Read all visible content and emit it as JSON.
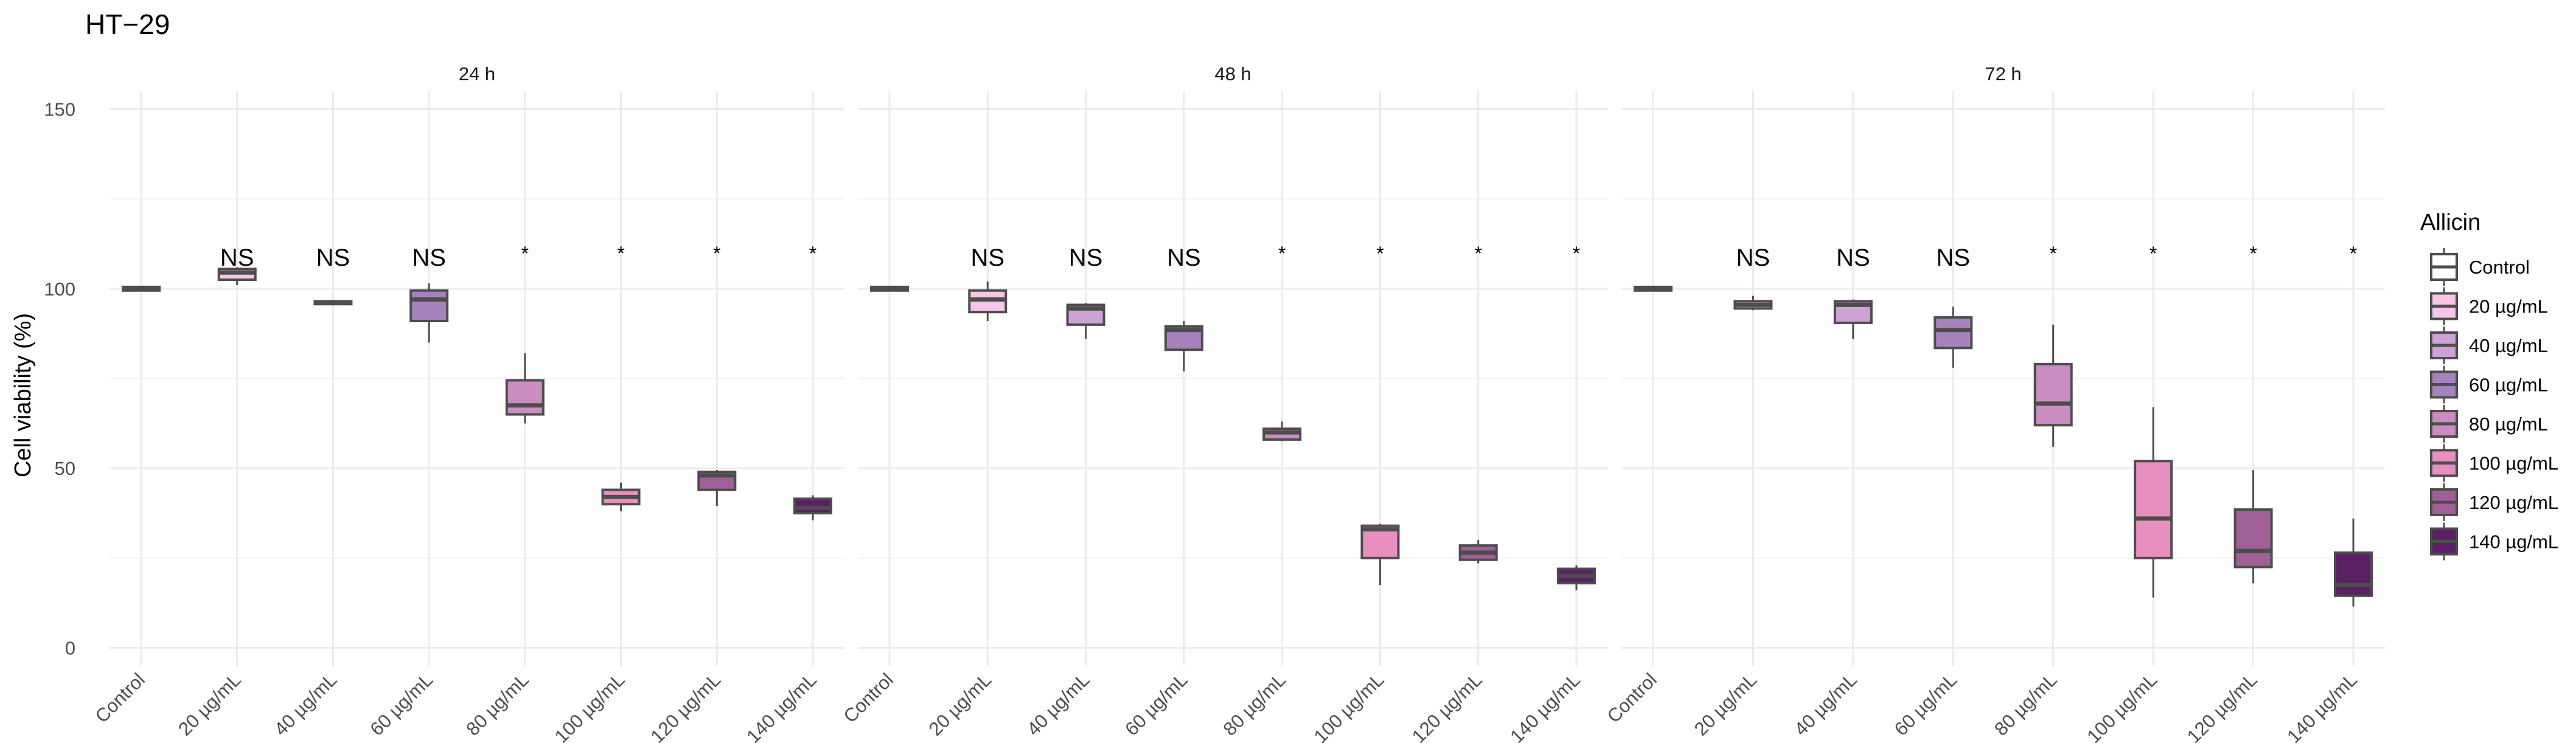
{
  "chart_data": {
    "type": "box",
    "title": "HT−29",
    "ylabel": "Cell viability (%)",
    "xlabel": "",
    "ylim": [
      -5,
      155
    ],
    "yticks": [
      0,
      50,
      100,
      150
    ],
    "categories": [
      "Control",
      "20 µg/mL",
      "40 µg/mL",
      "60 µg/mL",
      "80 µg/mL",
      "100 µg/mL",
      "120 µg/mL",
      "140 µg/mL"
    ],
    "colors": [
      "#FFFFFF",
      "#F5C6E6",
      "#CDA2D4",
      "#A683BD",
      "#C98DBF",
      "#E88FC0",
      "#A15F97",
      "#5A2063"
    ],
    "legend": {
      "title": "Allicin",
      "position": "right",
      "items": [
        "Control",
        "20 µg/mL",
        "40 µg/mL",
        "60 µg/mL",
        "80 µg/mL",
        "100 µg/mL",
        "120 µg/mL",
        "140 µg/mL"
      ]
    },
    "panels": [
      {
        "label": "24 h",
        "boxes": [
          {
            "min": 99.5,
            "q1": 99.5,
            "median": 100,
            "q3": 100.5,
            "max": 100.5
          },
          {
            "min": 101,
            "q1": 102.5,
            "median": 104.5,
            "q3": 105.5,
            "max": 106
          },
          {
            "min": 95.5,
            "q1": 95.7,
            "median": 96,
            "q3": 96.5,
            "max": 96.7
          },
          {
            "min": 85,
            "q1": 91,
            "median": 97,
            "q3": 99.5,
            "max": 101.5
          },
          {
            "min": 62.5,
            "q1": 65,
            "median": 67.5,
            "q3": 74.5,
            "max": 82
          },
          {
            "min": 38,
            "q1": 40,
            "median": 42,
            "q3": 44,
            "max": 46
          },
          {
            "min": 39.5,
            "q1": 44,
            "median": 48,
            "q3": 49,
            "max": 49.5
          },
          {
            "min": 35.5,
            "q1": 37.5,
            "median": 39,
            "q3": 41.5,
            "max": 42.5
          }
        ],
        "annotations": [
          "",
          "NS",
          "NS",
          "NS",
          "*",
          "*",
          "*",
          "*"
        ]
      },
      {
        "label": "48 h",
        "boxes": [
          {
            "min": 99.5,
            "q1": 99.5,
            "median": 100,
            "q3": 100.5,
            "max": 100.5
          },
          {
            "min": 91,
            "q1": 93.5,
            "median": 97,
            "q3": 99.5,
            "max": 102
          },
          {
            "min": 86,
            "q1": 90,
            "median": 94.5,
            "q3": 95.5,
            "max": 96
          },
          {
            "min": 77,
            "q1": 83,
            "median": 88.5,
            "q3": 89.5,
            "max": 91
          },
          {
            "min": 57.5,
            "q1": 58,
            "median": 60,
            "q3": 61,
            "max": 63
          },
          {
            "min": 17.5,
            "q1": 25,
            "median": 33,
            "q3": 34,
            "max": 34.5
          },
          {
            "min": 23.5,
            "q1": 24.5,
            "median": 26.5,
            "q3": 28.5,
            "max": 30
          },
          {
            "min": 16,
            "q1": 18,
            "median": 20,
            "q3": 22,
            "max": 23
          }
        ],
        "annotations": [
          "",
          "NS",
          "NS",
          "NS",
          "*",
          "*",
          "*",
          "*"
        ]
      },
      {
        "label": "72 h",
        "boxes": [
          {
            "min": 99.5,
            "q1": 99.5,
            "median": 100,
            "q3": 100.5,
            "max": 100.5
          },
          {
            "min": 94,
            "q1": 94.5,
            "median": 95.5,
            "q3": 96.5,
            "max": 98
          },
          {
            "min": 86,
            "q1": 90.5,
            "median": 95.5,
            "q3": 96.5,
            "max": 97
          },
          {
            "min": 78,
            "q1": 83.5,
            "median": 88.5,
            "q3": 92,
            "max": 95
          },
          {
            "min": 56,
            "q1": 62,
            "median": 68,
            "q3": 79,
            "max": 90
          },
          {
            "min": 14,
            "q1": 25,
            "median": 36,
            "q3": 52,
            "max": 67
          },
          {
            "min": 18,
            "q1": 22.5,
            "median": 27,
            "q3": 38.5,
            "max": 49.5
          },
          {
            "min": 11.5,
            "q1": 14.5,
            "median": 17.5,
            "q3": 26.5,
            "max": 36
          }
        ],
        "annotations": [
          "",
          "NS",
          "NS",
          "NS",
          "*",
          "*",
          "*",
          "*"
        ]
      }
    ]
  }
}
